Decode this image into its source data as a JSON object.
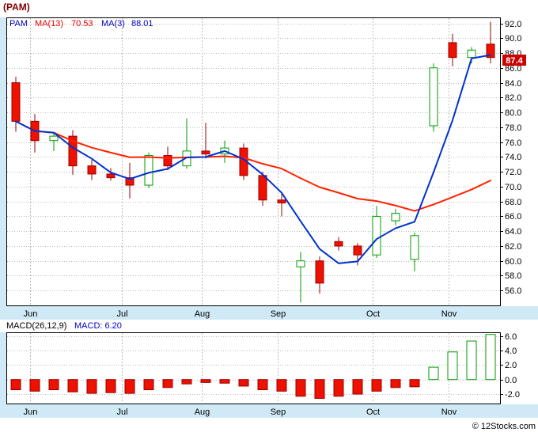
{
  "title": "(PAM)",
  "price_chart": {
    "legend": {
      "symbol": "PAM",
      "ma13_label": "MA(13)",
      "ma13_value": "70.53",
      "ma3_label": "MA(3)",
      "ma3_value": "88.01"
    },
    "last_price": "87.4"
  },
  "macd_chart": {
    "label": "MACD(26,12,9)",
    "value_label": "MACD: 6.20"
  },
  "footer": {
    "copyright": "© 12Stocks.com"
  },
  "chart_data": [
    {
      "type": "candlestick",
      "series_name": "PAM weekly price",
      "ylim": [
        54.0,
        92.8
      ],
      "y_tick_labels": [
        "92.0",
        "90.0",
        "88.0",
        "86.0",
        "84.0",
        "82.0",
        "80.0",
        "78.0",
        "76.0",
        "74.0",
        "72.0",
        "70.0",
        "68.0",
        "66.0",
        "64.0",
        "62.0",
        "60.0",
        "58.0",
        "56.0"
      ],
      "x_month_ticks": [
        {
          "label": "Jun",
          "index": 0.75
        },
        {
          "label": "Jul",
          "index": 5.6
        },
        {
          "label": "Aug",
          "index": 9.8
        },
        {
          "label": "Sep",
          "index": 13.8
        },
        {
          "label": "Oct",
          "index": 18.8
        },
        {
          "label": "Nov",
          "index": 22.8
        }
      ],
      "overlays": [
        {
          "name": "MA(13)",
          "period": 13,
          "last_value": 70.53,
          "color_key": "ma13"
        },
        {
          "name": "MA(3)",
          "period": 3,
          "last_value": 88.01,
          "color_key": "ma3"
        }
      ],
      "last_close": 87.4,
      "candles": [
        {
          "o": 84.0,
          "h": 84.8,
          "l": 77.4,
          "c": 78.8
        },
        {
          "o": 78.8,
          "h": 79.8,
          "l": 74.6,
          "c": 76.2
        },
        {
          "o": 76.2,
          "h": 77.4,
          "l": 74.8,
          "c": 76.8
        },
        {
          "o": 76.8,
          "h": 77.6,
          "l": 71.6,
          "c": 72.8
        },
        {
          "o": 72.8,
          "h": 73.6,
          "l": 70.9,
          "c": 71.7
        },
        {
          "o": 71.7,
          "h": 72.5,
          "l": 70.8,
          "c": 71.2
        },
        {
          "o": 71.2,
          "h": 73.2,
          "l": 68.4,
          "c": 70.2
        },
        {
          "o": 70.2,
          "h": 74.6,
          "l": 69.8,
          "c": 74.2
        },
        {
          "o": 74.2,
          "h": 75.4,
          "l": 72.2,
          "c": 72.8
        },
        {
          "o": 72.8,
          "h": 79.2,
          "l": 72.4,
          "c": 74.8
        },
        {
          "o": 74.8,
          "h": 78.6,
          "l": 73.8,
          "c": 74.4
        },
        {
          "o": 74.4,
          "h": 76.2,
          "l": 73.2,
          "c": 75.2
        },
        {
          "o": 75.2,
          "h": 75.8,
          "l": 70.9,
          "c": 71.5
        },
        {
          "o": 71.5,
          "h": 72.0,
          "l": 67.4,
          "c": 68.2
        },
        {
          "o": 68.2,
          "h": 69.0,
          "l": 66.0,
          "c": 67.8
        },
        {
          "o": 59.2,
          "h": 61.2,
          "l": 54.4,
          "c": 60.0
        },
        {
          "o": 60.0,
          "h": 60.6,
          "l": 55.6,
          "c": 57.0
        },
        {
          "o": 62.6,
          "h": 63.2,
          "l": 61.4,
          "c": 62.0
        },
        {
          "o": 62.0,
          "h": 62.4,
          "l": 59.4,
          "c": 60.8
        },
        {
          "o": 60.8,
          "h": 67.4,
          "l": 60.4,
          "c": 66.0
        },
        {
          "o": 65.4,
          "h": 67.0,
          "l": 64.8,
          "c": 66.4
        },
        {
          "o": 60.2,
          "h": 63.8,
          "l": 58.6,
          "c": 63.4
        },
        {
          "o": 78.2,
          "h": 86.6,
          "l": 77.4,
          "c": 86.0
        },
        {
          "o": 89.4,
          "h": 90.6,
          "l": 86.2,
          "c": 87.4
        },
        {
          "o": 87.4,
          "h": 88.8,
          "l": 86.6,
          "c": 88.4
        },
        {
          "o": 89.2,
          "h": 92.2,
          "l": 86.6,
          "c": 87.4
        }
      ]
    },
    {
      "type": "bar",
      "series_name": "MACD(26,12,9)",
      "ylim": [
        -3.3,
        6.5
      ],
      "y_tick_labels": [
        "6.0",
        "4.0",
        "2.0",
        "0.0",
        "-2.0"
      ],
      "last_value": 6.2,
      "values": [
        -1.4,
        -1.6,
        -1.4,
        -1.7,
        -1.9,
        -1.8,
        -1.9,
        -1.4,
        -1.1,
        -0.6,
        -0.4,
        -0.5,
        -0.9,
        -1.4,
        -1.6,
        -2.3,
        -2.6,
        -2.3,
        -2.0,
        -1.6,
        -1.1,
        -1.0,
        1.7,
        3.8,
        5.3,
        6.2
      ]
    }
  ],
  "colors": {
    "up": "#009b00",
    "down_fill": "#ee1100",
    "down_border": "#990000",
    "ma13": "#ff2200",
    "ma3": "#0033cc",
    "panel_blue": "#cfe9f7",
    "grid": "#bbbbbb",
    "tag_bg": "#cc0000",
    "tag_text": "#ffffff",
    "title": "#800000",
    "legend_blue": "#0000bb",
    "legend_red": "#ee0000"
  }
}
